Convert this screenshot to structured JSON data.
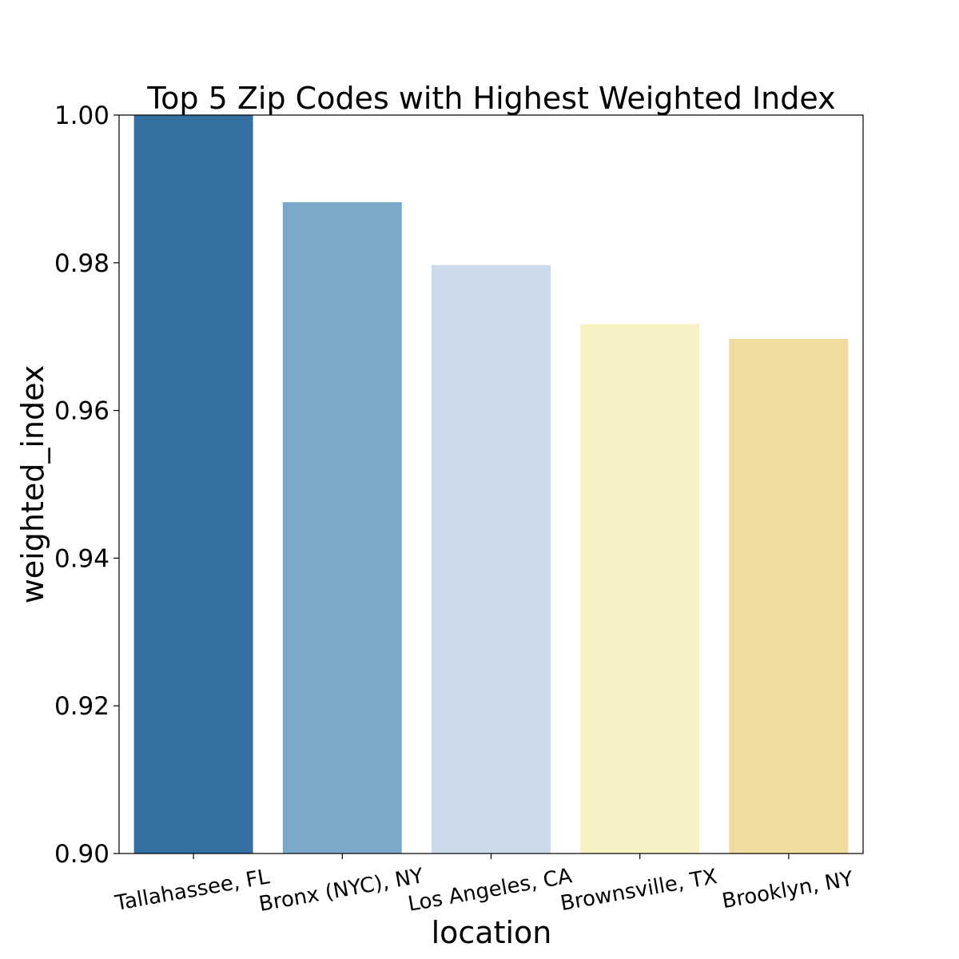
{
  "chart_data": {
    "type": "bar",
    "title": "Top 5 Zip Codes with Highest Weighted Index",
    "xlabel": "location",
    "ylabel": "weighted_index",
    "categories": [
      "Tallahassee, FL",
      "Bronx (NYC), NY",
      "Los Angeles, CA",
      "Brownsville, TX",
      "Brooklyn, NY"
    ],
    "values": [
      1.0,
      0.9882,
      0.9797,
      0.9717,
      0.9697
    ],
    "colors": [
      "#3570a3",
      "#7aa9c9",
      "#ccdbea",
      "#f8f1c4",
      "#f0dc9e"
    ],
    "ylim": [
      0.9,
      1.0
    ],
    "yticks": [
      "0.90",
      "0.92",
      "0.94",
      "0.96",
      "0.98",
      "1.00"
    ],
    "grid": false,
    "legend": "none"
  }
}
